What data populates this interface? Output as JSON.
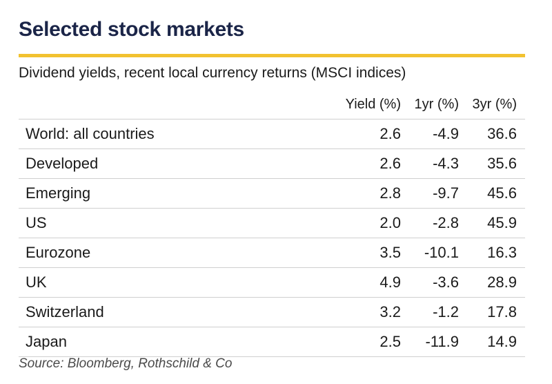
{
  "title": "Selected stock markets",
  "subtitle": "Dividend yields, recent local currency returns (MSCI indices)",
  "source": "Source: Bloomberg, Rothschild & Co",
  "colors": {
    "title": "#1b2548",
    "accent_rule": "#f2c230",
    "row_divider": "#cfcfcf"
  },
  "chart_data": {
    "type": "table",
    "title": "Selected stock markets",
    "subtitle": "Dividend yields, recent local currency returns (MSCI indices)",
    "columns": [
      "",
      "Yield (%)",
      "1yr (%)",
      "3yr (%)"
    ],
    "rows": [
      {
        "market": "World: all countries",
        "yield": "2.6",
        "r1y": "-4.9",
        "r3y": "36.6"
      },
      {
        "market": "Developed",
        "yield": "2.6",
        "r1y": "-4.3",
        "r3y": "35.6"
      },
      {
        "market": "Emerging",
        "yield": "2.8",
        "r1y": "-9.7",
        "r3y": "45.6"
      },
      {
        "market": "US",
        "yield": "2.0",
        "r1y": "-2.8",
        "r3y": "45.9"
      },
      {
        "market": "Eurozone",
        "yield": "3.5",
        "r1y": "-10.1",
        "r3y": "16.3"
      },
      {
        "market": "UK",
        "yield": "4.9",
        "r1y": "-3.6",
        "r3y": "28.9"
      },
      {
        "market": "Switzerland",
        "yield": "3.2",
        "r1y": "-1.2",
        "r3y": "17.8"
      },
      {
        "market": "Japan",
        "yield": "2.5",
        "r1y": "-11.9",
        "r3y": "14.9"
      }
    ]
  }
}
